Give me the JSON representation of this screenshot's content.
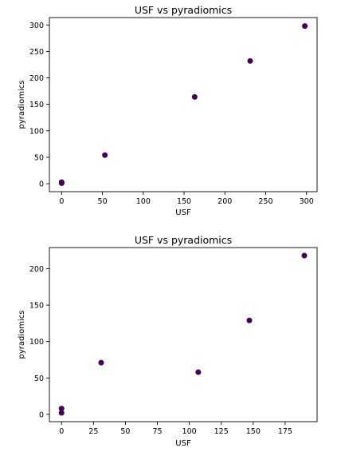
{
  "chart_data": [
    {
      "type": "scatter",
      "title": "USF vs pyradiomics",
      "xlabel": "USF",
      "ylabel": "pyradiomics",
      "xlim": [
        -15,
        313
      ],
      "ylim": [
        -15,
        314
      ],
      "xticks": [
        0,
        50,
        100,
        150,
        200,
        250,
        300
      ],
      "yticks": [
        0,
        50,
        100,
        150,
        200,
        250,
        300
      ],
      "point_color": "#440154",
      "grid": false,
      "points": [
        {
          "x": 0,
          "y": 3
        },
        {
          "x": 0,
          "y": 1
        },
        {
          "x": 53,
          "y": 54
        },
        {
          "x": 163,
          "y": 164
        },
        {
          "x": 231,
          "y": 232
        },
        {
          "x": 298,
          "y": 298
        }
      ]
    },
    {
      "type": "scatter",
      "title": "USF vs pyradiomics",
      "xlabel": "USF",
      "ylabel": "pyradiomics",
      "xlim": [
        -9.5,
        200
      ],
      "ylim": [
        -10,
        229
      ],
      "xticks": [
        0,
        25,
        50,
        75,
        100,
        125,
        150,
        175
      ],
      "yticks": [
        0,
        50,
        100,
        150,
        200
      ],
      "point_color": "#440154",
      "grid": false,
      "points": [
        {
          "x": 0,
          "y": 8
        },
        {
          "x": 0,
          "y": 2
        },
        {
          "x": 31,
          "y": 71
        },
        {
          "x": 107,
          "y": 58
        },
        {
          "x": 147,
          "y": 129
        },
        {
          "x": 190,
          "y": 218
        }
      ]
    }
  ]
}
